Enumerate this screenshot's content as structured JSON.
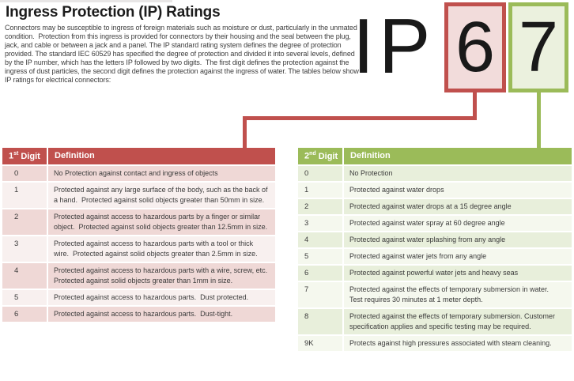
{
  "page": {
    "title": "Ingress Protection (IP) Ratings",
    "intro": "Connectors may be susceptible to ingress of foreign materials such as moisture or dust, particularly in the unmated condition.  Protection from this ingress is provided for connectors by their housing and the seal between the plug, jack, and cable or between a jack and a panel. The IP standard rating system defines the degree of protection provided. The standard IEC 60529 has specified the degree of protection and divided it into several levels, defined by the IP number, which has the letters IP followed by two digits.  The first digit defines the protection against the ingress of dust particles, the second digit defines the protection against the ingress of water. The tables below show IP ratings for electrical connectors:"
  },
  "ip_graphic": {
    "letters": [
      "I",
      "P"
    ],
    "first_digit": "6",
    "second_digit": "7"
  },
  "colors": {
    "accent_red": "#C0504D",
    "accent_red_fill": "#F2DCDB",
    "accent_green": "#9BBB59",
    "accent_green_fill": "#EBF1DE",
    "red_band_dark": "#EFD8D6",
    "red_band_light": "#F8F0EF",
    "green_band_dark": "#E8EFDB",
    "green_band_light": "#F5F8EE"
  },
  "first_digit_table": {
    "header": {
      "number": "1",
      "ordinal": "st",
      "word": "Digit",
      "definition": "Definition"
    },
    "rows": [
      {
        "digit": "0",
        "definition": "No Protection against contact and ingress of objects"
      },
      {
        "digit": "1",
        "definition": "Protected against any large surface of the body, such as the back of a hand.  Protected against solid objects greater than 50mm in size."
      },
      {
        "digit": "2",
        "definition": "Protected against access to hazardous parts by a finger or similar object.  Protected against solid objects greater than 12.5mm in size."
      },
      {
        "digit": "3",
        "definition": "Protected against access to hazardous parts with a tool or thick wire.  Protected against solid objects greater than 2.5mm in size."
      },
      {
        "digit": "4",
        "definition": "Protected against access to hazardous parts with a wire, screw, etc.  Protected against solid objects greater than 1mm in size."
      },
      {
        "digit": "5",
        "definition": "Protected against access to hazardous parts.  Dust protected."
      },
      {
        "digit": "6",
        "definition": "Protected against access to hazardous parts.  Dust-tight."
      }
    ]
  },
  "second_digit_table": {
    "header": {
      "number": "2",
      "ordinal": "nd",
      "word": "Digit",
      "definition": "Definition"
    },
    "rows": [
      {
        "digit": "0",
        "definition": "No Protection"
      },
      {
        "digit": "1",
        "definition": "Protected against water drops"
      },
      {
        "digit": "2",
        "definition": "Protected against water drops at a 15 degree angle"
      },
      {
        "digit": "3",
        "definition": "Protected against water spray at 60 degree angle"
      },
      {
        "digit": "4",
        "definition": "Protected against water splashing from any angle"
      },
      {
        "digit": "5",
        "definition": "Protected against water jets from any angle"
      },
      {
        "digit": "6",
        "definition": "Protected against powerful water jets and heavy seas"
      },
      {
        "digit": "7",
        "definition": "Protected against the effects of temporary submersion in water.  Test requires 30 minutes at 1 meter depth."
      },
      {
        "digit": "8",
        "definition": "Protected against the effects of temporary submersion. Customer specification applies and specific testing may be required."
      },
      {
        "digit": "9K",
        "definition": "Protects against high pressures associated with steam cleaning."
      }
    ]
  }
}
